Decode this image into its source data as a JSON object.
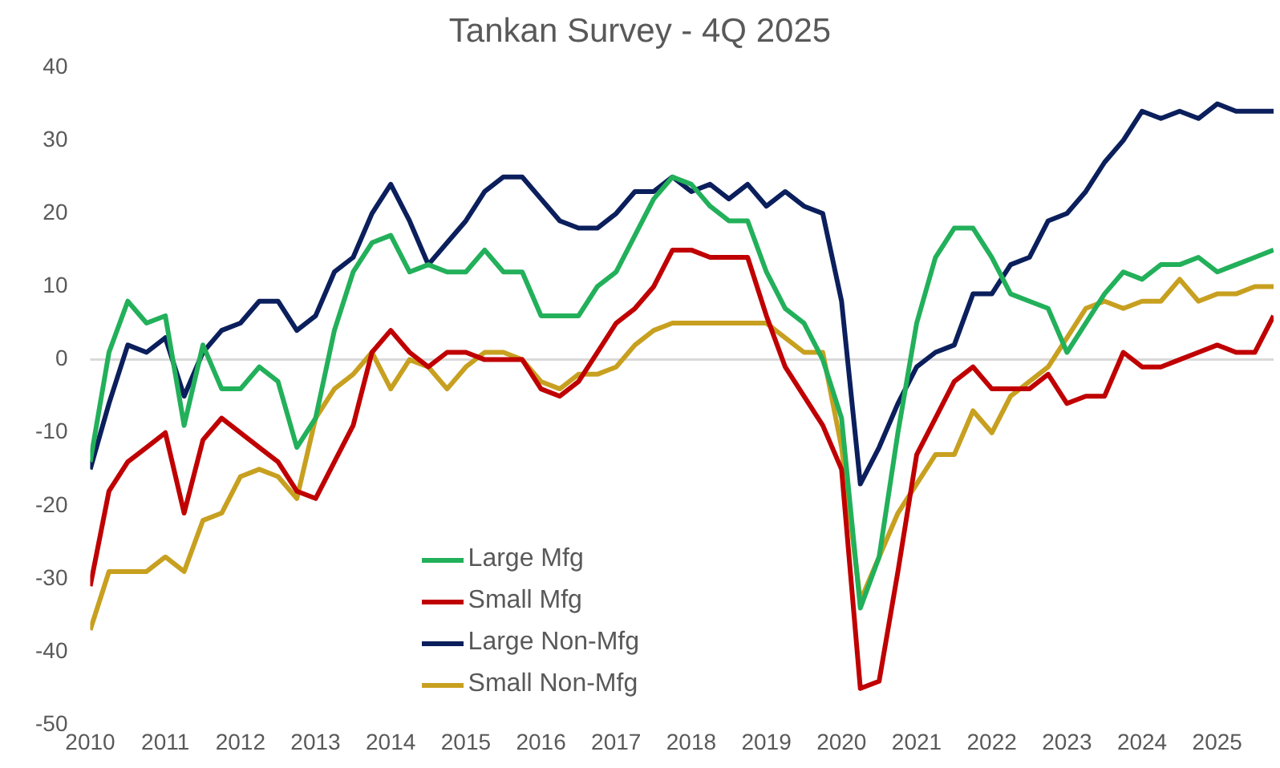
{
  "chart_data": {
    "type": "line",
    "title": "Tankan Survey - 4Q 2025",
    "x": [
      2010,
      2010.25,
      2010.5,
      2010.75,
      2011,
      2011.25,
      2011.5,
      2011.75,
      2012,
      2012.25,
      2012.5,
      2012.75,
      2013,
      2013.25,
      2013.5,
      2013.75,
      2014,
      2014.25,
      2014.5,
      2014.75,
      2015,
      2015.25,
      2015.5,
      2015.75,
      2016,
      2016.25,
      2016.5,
      2016.75,
      2017,
      2017.25,
      2017.5,
      2017.75,
      2018,
      2018.25,
      2018.5,
      2018.75,
      2019,
      2019.25,
      2019.5,
      2019.75,
      2020,
      2020.25,
      2020.5,
      2020.75,
      2021,
      2021.25,
      2021.5,
      2021.75,
      2022,
      2022.25,
      2022.5,
      2022.75,
      2023,
      2023.25,
      2023.5,
      2023.75,
      2024,
      2024.25,
      2024.5,
      2024.75,
      2025,
      2025.25,
      2025.5,
      2025.75
    ],
    "series": [
      {
        "name": "Large Mfg",
        "color": "#22b05a",
        "values": [
          -14,
          1,
          8,
          5,
          6,
          -9,
          2,
          -4,
          -4,
          -1,
          -3,
          -12,
          -8,
          4,
          12,
          16,
          17,
          12,
          13,
          12,
          12,
          15,
          12,
          12,
          6,
          6,
          6,
          10,
          12,
          17,
          22,
          25,
          24,
          21,
          19,
          19,
          12,
          7,
          5,
          0,
          -8,
          -34,
          -27,
          -10,
          5,
          14,
          18,
          18,
          14,
          9,
          8,
          7,
          1,
          5,
          9,
          12,
          11,
          13,
          13,
          14,
          12,
          13,
          14,
          15
        ]
      },
      {
        "name": "Small Mfg",
        "color": "#c00000",
        "values": [
          -31,
          -18,
          -14,
          -12,
          -10,
          -21,
          -11,
          -8,
          -10,
          -12,
          -14,
          -18,
          -19,
          -14,
          -9,
          1,
          4,
          1,
          -1,
          1,
          1,
          0,
          0,
          0,
          -4,
          -5,
          -3,
          1,
          5,
          7,
          10,
          15,
          15,
          14,
          14,
          14,
          6,
          -1,
          -5,
          -9,
          -15,
          -45,
          -44,
          -29,
          -13,
          -8,
          -3,
          -1,
          -4,
          -4,
          -4,
          -2,
          -6,
          -5,
          -5,
          1,
          -1,
          -1,
          0,
          1,
          2,
          1,
          1,
          6
        ]
      },
      {
        "name": "Large Non-Mfg",
        "color": "#0b1f5c",
        "values": [
          -15,
          -6,
          2,
          1,
          3,
          -5,
          1,
          4,
          5,
          8,
          8,
          4,
          6,
          12,
          14,
          20,
          24,
          19,
          13,
          16,
          19,
          23,
          25,
          25,
          22,
          19,
          18,
          18,
          20,
          23,
          23,
          25,
          23,
          24,
          22,
          24,
          21,
          23,
          21,
          20,
          8,
          -17,
          -12,
          -6,
          -1,
          1,
          2,
          9,
          9,
          13,
          14,
          19,
          20,
          23,
          27,
          30,
          34,
          33,
          34,
          33,
          35,
          34,
          34,
          34
        ]
      },
      {
        "name": "Small Non-Mfg",
        "color": "#c8a020",
        "values": [
          -37,
          -29,
          -29,
          -29,
          -27,
          -29,
          -22,
          -21,
          -16,
          -15,
          -16,
          -19,
          -8,
          -4,
          -2,
          1,
          -4,
          0,
          -1,
          -4,
          -1,
          1,
          1,
          0,
          -3,
          -4,
          -2,
          -2,
          -1,
          2,
          4,
          5,
          5,
          5,
          5,
          5,
          5,
          3,
          1,
          1,
          -12,
          -33,
          -27,
          -21,
          -17,
          -13,
          -13,
          -7,
          -10,
          -5,
          -3,
          -1,
          3,
          7,
          8,
          7,
          8,
          8,
          11,
          8,
          9,
          9,
          10,
          10
        ]
      }
    ],
    "xlim": [
      2010,
      2025.75
    ],
    "xticks": [
      2010,
      2011,
      2012,
      2013,
      2014,
      2015,
      2016,
      2017,
      2018,
      2019,
      2020,
      2021,
      2022,
      2023,
      2024,
      2025
    ],
    "ylim": [
      -50,
      40
    ],
    "yticks": [
      -50,
      -40,
      -30,
      -20,
      -10,
      0,
      10,
      20,
      30,
      40
    ],
    "ref_lines": [
      {
        "axis": "y",
        "value": 0,
        "color": "#d9d9d9"
      }
    ],
    "grid": false,
    "legend": "bottom left",
    "marker": "none",
    "line_style": "solid"
  }
}
